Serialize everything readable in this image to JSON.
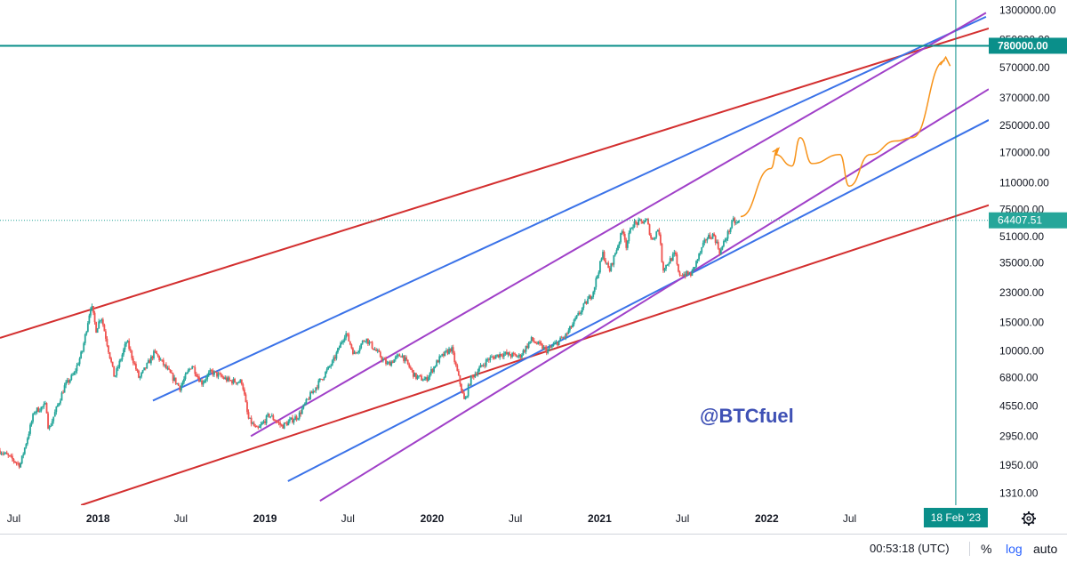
{
  "chart_data": {
    "type": "line",
    "title": "",
    "xlabel": "",
    "ylabel": "",
    "scale": "log",
    "grid": false,
    "x_range": [
      "2017-06-01",
      "2023-05-01"
    ],
    "y_range": [
      1100,
      1500000
    ],
    "x_ticks": [
      {
        "label": "Jul",
        "date": "2017-07-01",
        "year": false
      },
      {
        "label": "2018",
        "date": "2018-01-01",
        "year": true
      },
      {
        "label": "Jul",
        "date": "2018-07-01",
        "year": false
      },
      {
        "label": "2019",
        "date": "2019-01-01",
        "year": true
      },
      {
        "label": "Jul",
        "date": "2019-07-01",
        "year": false
      },
      {
        "label": "2020",
        "date": "2020-01-01",
        "year": true
      },
      {
        "label": "Jul",
        "date": "2020-07-01",
        "year": false
      },
      {
        "label": "2021",
        "date": "2021-01-01",
        "year": true
      },
      {
        "label": "Jul",
        "date": "2021-07-01",
        "year": false
      },
      {
        "label": "2022",
        "date": "2022-01-01",
        "year": true
      },
      {
        "label": "Jul",
        "date": "2022-07-01",
        "year": false
      }
    ],
    "y_ticks": [
      {
        "label": "1300000.00",
        "value": 1300000
      },
      {
        "label": "850000.00",
        "value": 850000
      },
      {
        "label": "570000.00",
        "value": 570000
      },
      {
        "label": "370000.00",
        "value": 370000
      },
      {
        "label": "250000.00",
        "value": 250000
      },
      {
        "label": "170000.00",
        "value": 170000
      },
      {
        "label": "110000.00",
        "value": 110000
      },
      {
        "label": "75000.00",
        "value": 75000
      },
      {
        "label": "51000.00",
        "value": 51000
      },
      {
        "label": "35000.00",
        "value": 35000
      },
      {
        "label": "23000.00",
        "value": 23000
      },
      {
        "label": "15000.00",
        "value": 15000
      },
      {
        "label": "10000.00",
        "value": 10000
      },
      {
        "label": "6800.00",
        "value": 6800
      },
      {
        "label": "4550.00",
        "value": 4550
      },
      {
        "label": "2950.00",
        "value": 2950
      },
      {
        "label": "1950.00",
        "value": 1950
      },
      {
        "label": "1310.00",
        "value": 1310
      }
    ],
    "price_series": [
      [
        "2017-06-01",
        2400
      ],
      [
        "2017-07-15",
        1950
      ],
      [
        "2017-08-15",
        4200
      ],
      [
        "2017-09-10",
        4600
      ],
      [
        "2017-09-15",
        3200
      ],
      [
        "2017-10-20",
        6000
      ],
      [
        "2017-11-10",
        7200
      ],
      [
        "2017-11-28",
        10000
      ],
      [
        "2017-12-17",
        19500
      ],
      [
        "2017-12-28",
        13500
      ],
      [
        "2018-01-08",
        16500
      ],
      [
        "2018-02-06",
        6800
      ],
      [
        "2018-03-05",
        11500
      ],
      [
        "2018-04-01",
        6700
      ],
      [
        "2018-05-05",
        9800
      ],
      [
        "2018-06-29",
        5900
      ],
      [
        "2018-07-25",
        8200
      ],
      [
        "2018-08-15",
        6300
      ],
      [
        "2018-09-05",
        7400
      ],
      [
        "2018-10-15",
        6500
      ],
      [
        "2018-11-12",
        6400
      ],
      [
        "2018-11-25",
        3800
      ],
      [
        "2018-12-15",
        3200
      ],
      [
        "2019-01-10",
        4000
      ],
      [
        "2019-02-07",
        3400
      ],
      [
        "2019-03-15",
        3950
      ],
      [
        "2019-04-10",
        5300
      ],
      [
        "2019-05-30",
        8600
      ],
      [
        "2019-06-26",
        13000
      ],
      [
        "2019-07-15",
        9500
      ],
      [
        "2019-08-08",
        12000
      ],
      [
        "2019-09-25",
        8200
      ],
      [
        "2019-10-26",
        9500
      ],
      [
        "2019-11-25",
        6900
      ],
      [
        "2019-12-18",
        6600
      ],
      [
        "2020-01-15",
        8800
      ],
      [
        "2020-02-12",
        10400
      ],
      [
        "2020-03-12",
        4800
      ],
      [
        "2020-03-25",
        6700
      ],
      [
        "2020-05-01",
        8800
      ],
      [
        "2020-06-01",
        9600
      ],
      [
        "2020-07-10",
        9200
      ],
      [
        "2020-08-05",
        11700
      ],
      [
        "2020-09-08",
        10000
      ],
      [
        "2020-10-20",
        12500
      ],
      [
        "2020-11-25",
        18500
      ],
      [
        "2020-12-17",
        23000
      ],
      [
        "2021-01-08",
        40000
      ],
      [
        "2021-01-22",
        31000
      ],
      [
        "2021-02-21",
        57000
      ],
      [
        "2021-02-28",
        45000
      ],
      [
        "2021-03-13",
        61000
      ],
      [
        "2021-04-14",
        64000
      ],
      [
        "2021-04-25",
        48000
      ],
      [
        "2021-05-10",
        58000
      ],
      [
        "2021-05-19",
        32000
      ],
      [
        "2021-06-15",
        40000
      ],
      [
        "2021-06-22",
        30000
      ],
      [
        "2021-07-20",
        29800
      ],
      [
        "2021-08-22",
        50000
      ],
      [
        "2021-09-07",
        52500
      ],
      [
        "2021-09-21",
        40500
      ],
      [
        "2021-10-01",
        48000
      ],
      [
        "2021-10-20",
        64000
      ],
      [
        "2021-10-28",
        61000
      ],
      [
        "2021-11-03",
        64407.51
      ]
    ],
    "horizontal_level": {
      "label": "780000.00",
      "value": 780000
    },
    "last_price": {
      "label": "64407.51",
      "value": 64407.51
    },
    "vertical_marker": {
      "label": "18 Feb '23",
      "date": "2023-02-18"
    },
    "trendlines": [
      {
        "color": "#d32f2f",
        "points": [
          [
            "2017-06-01",
            12000
          ],
          [
            "2023-05-01",
            1000000
          ]
        ]
      },
      {
        "color": "#d32f2f",
        "points": [
          [
            "2017-11-25",
            1100
          ],
          [
            "2023-05-01",
            80000
          ]
        ]
      },
      {
        "color": "#3a72e8",
        "points": [
          [
            "2018-05-01",
            4900
          ],
          [
            "2023-04-25",
            1180000
          ]
        ]
      },
      {
        "color": "#3a72e8",
        "points": [
          [
            "2019-02-20",
            1550
          ],
          [
            "2023-05-01",
            270000
          ]
        ]
      },
      {
        "color": "#a040c8",
        "points": [
          [
            "2018-12-01",
            2950
          ],
          [
            "2023-04-25",
            1250000
          ]
        ]
      },
      {
        "color": "#a040c8",
        "points": [
          [
            "2019-05-01",
            1170
          ],
          [
            "2023-05-01",
            420000
          ]
        ]
      }
    ],
    "projection_path": [
      [
        "2021-11-05",
        68000
      ],
      [
        "2022-01-10",
        135000
      ],
      [
        "2022-01-25",
        180000
      ],
      [
        "2022-01-20",
        165000
      ],
      [
        "2022-02-25",
        140000
      ],
      [
        "2022-03-15",
        210000
      ],
      [
        "2022-04-10",
        145000
      ],
      [
        "2022-06-10",
        165000
      ],
      [
        "2022-06-30",
        105000
      ],
      [
        "2022-08-15",
        165000
      ],
      [
        "2022-10-10",
        200000
      ],
      [
        "2022-11-15",
        210000
      ],
      [
        "2023-01-25",
        630000
      ]
    ],
    "projection_tip": [
      "2023-01-27",
      630000
    ],
    "annotation": {
      "text": "@BTCfuel",
      "color": "#3f51b5"
    },
    "colors": {
      "level": "#0a8f8a",
      "accent": "#f7931a",
      "up": "#26a69a",
      "down": "#ef5350"
    }
  },
  "status_bar": {
    "clock": "00:53:18 (UTC)",
    "percent": "%",
    "log": "log",
    "auto": "auto"
  }
}
